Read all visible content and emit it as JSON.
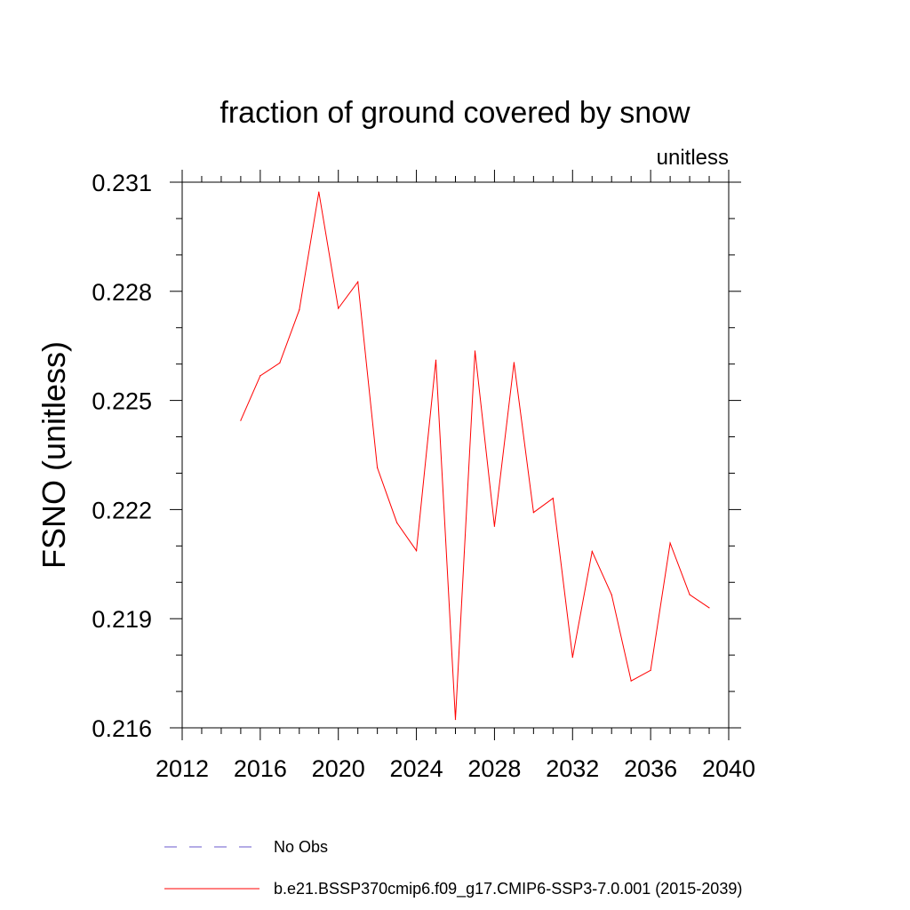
{
  "chart_data": {
    "type": "line",
    "title": "fraction of ground covered by snow",
    "units_label": "unitless",
    "ylabel": "FSNO  (unitless)",
    "xlabel": "",
    "xlim": [
      2012,
      2040
    ],
    "ylim": [
      0.216,
      0.231
    ],
    "x_ticks": [
      2012,
      2016,
      2020,
      2024,
      2028,
      2032,
      2036,
      2040
    ],
    "y_ticks": [
      "0.216",
      "0.219",
      "0.222",
      "0.225",
      "0.228",
      "0.231"
    ],
    "y_tick_values": [
      0.216,
      0.219,
      0.222,
      0.225,
      0.228,
      0.231
    ],
    "series": [
      {
        "name": "b.e21.BSSP370cmip6.f09_g17.CMIP6-SSP3-7.0.001 (2015-2039)",
        "color": "#ff0000",
        "x": [
          2015,
          2016,
          2017,
          2018,
          2019,
          2020,
          2021,
          2022,
          2023,
          2024,
          2025,
          2026,
          2027,
          2028,
          2029,
          2030,
          2031,
          2032,
          2033,
          2034,
          2035,
          2036,
          2037,
          2038,
          2039
        ],
        "values": [
          0.22445,
          0.22568,
          0.22603,
          0.22749,
          0.23073,
          0.22753,
          0.22826,
          0.22315,
          0.22164,
          0.22087,
          0.22611,
          0.21623,
          0.22636,
          0.22154,
          0.22604,
          0.22192,
          0.22231,
          0.21794,
          0.22085,
          0.21966,
          0.21729,
          0.21758,
          0.22108,
          0.21966,
          0.2193
        ]
      }
    ],
    "legend": [
      {
        "label": "No Obs",
        "color": "#6a5acd",
        "style": "dashed"
      },
      {
        "label": "b.e21.BSSP370cmip6.f09_g17.CMIP6-SSP3-7.0.001 (2015-2039)",
        "color": "#ff0000",
        "style": "solid"
      }
    ]
  }
}
